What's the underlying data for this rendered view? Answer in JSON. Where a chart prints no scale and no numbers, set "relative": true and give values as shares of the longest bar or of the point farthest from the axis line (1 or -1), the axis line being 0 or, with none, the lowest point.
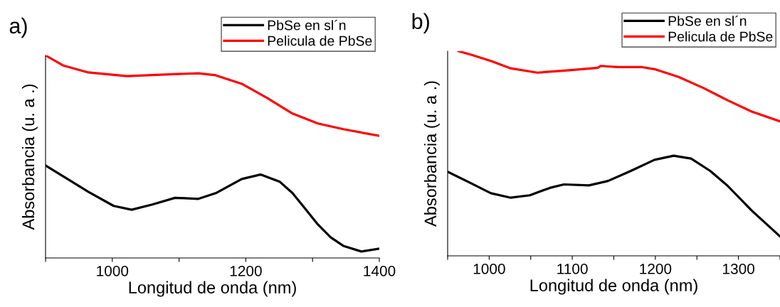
{
  "chart_data": [
    {
      "type": "line",
      "title": "a)",
      "xlabel": "Longitud de onda (nm)",
      "ylabel": "Absorbancia (u. a .)",
      "relative": true,
      "legend": "top right",
      "grid": false,
      "xlim": [
        900,
        1400
      ],
      "xticks": [
        {
          "value": 900,
          "label": null
        },
        1000,
        {
          "value": 1100,
          "label": null
        },
        1200,
        {
          "value": 1300,
          "label": null
        },
        1400
      ],
      "series": [
        {
          "name": "PbSe en sl´n",
          "color": "#000000",
          "x": [
            900,
            926,
            964,
            1002,
            1029,
            1060,
            1094,
            1129,
            1155,
            1194,
            1222,
            1251,
            1270,
            1289,
            1308,
            1327,
            1346,
            1373,
            1400
          ],
          "values": [
            0.457,
            0.404,
            0.327,
            0.257,
            0.238,
            0.264,
            0.297,
            0.292,
            0.32,
            0.39,
            0.412,
            0.376,
            0.32,
            0.243,
            0.165,
            0.102,
            0.06,
            0.032,
            0.046
          ]
        },
        {
          "name": "Pelicula de PbSe",
          "color": "#ff0000",
          "x": [
            900,
            926,
            964,
            1022,
            1079,
            1129,
            1155,
            1194,
            1232,
            1270,
            1308,
            1346,
            1400
          ],
          "values": [
            1.0,
            0.951,
            0.916,
            0.898,
            0.906,
            0.912,
            0.902,
            0.86,
            0.79,
            0.713,
            0.664,
            0.636,
            0.603
          ]
        }
      ]
    },
    {
      "type": "line",
      "title": "b)",
      "xlabel": "Longitud de onda (nm)",
      "ylabel": "Absorbancia (u. a .)",
      "relative": true,
      "legend": "top right",
      "grid": false,
      "xlim": [
        950,
        1350
      ],
      "xticks": [
        {
          "value": 950,
          "label": null
        },
        1000,
        {
          "value": 1050,
          "label": null
        },
        1100,
        {
          "value": 1150,
          "label": null
        },
        1200,
        {
          "value": 1250,
          "label": null
        },
        1300,
        {
          "value": 1350,
          "label": null
        }
      ],
      "series": [
        {
          "name": "PbSe en sl´n",
          "color": "#000000",
          "x": [
            950,
            979,
            1002,
            1026,
            1049,
            1073,
            1090,
            1120,
            1143,
            1170,
            1199,
            1222,
            1243,
            1266,
            1287,
            1316,
            1350
          ],
          "values": [
            0.411,
            0.353,
            0.306,
            0.284,
            0.296,
            0.332,
            0.349,
            0.344,
            0.366,
            0.414,
            0.469,
            0.489,
            0.475,
            0.415,
            0.342,
            0.221,
            0.095
          ]
        },
        {
          "name": "Pelicula de PbSe",
          "color": "#ff0000",
          "x": [
            963,
            979,
            1002,
            1026,
            1058,
            1096,
            1131,
            1134,
            1155,
            1184,
            1199,
            1228,
            1258,
            1287,
            1316,
            1350
          ],
          "values": [
            1.0,
            0.982,
            0.952,
            0.916,
            0.895,
            0.907,
            0.919,
            0.928,
            0.922,
            0.922,
            0.912,
            0.874,
            0.82,
            0.76,
            0.705,
            0.657
          ]
        }
      ]
    }
  ]
}
